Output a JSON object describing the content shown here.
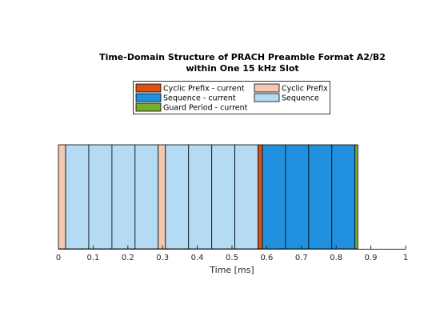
{
  "chart_data": {
    "type": "bar",
    "orientation": "horizontal-stacked-timeline",
    "title_lines": [
      "Time-Domain Structure of PRACH Preamble Format A2/B2",
      "within One 15 kHz Slot"
    ],
    "xlabel": "Time  [ms]",
    "ylabel": "",
    "xlim": [
      0,
      1
    ],
    "xticks": [
      "0",
      "0.1",
      "0.2",
      "0.3",
      "0.4",
      "0.5",
      "0.6",
      "0.7",
      "0.8",
      "0.9",
      "1"
    ],
    "grid": false,
    "legend_position": "top",
    "series": [
      {
        "name": "Cyclic Prefix - current",
        "color": "#d95319"
      },
      {
        "name": "Cyclic Prefix",
        "color": "#f4c7b1"
      },
      {
        "name": "Sequence - current",
        "color": "#2191df"
      },
      {
        "name": "Sequence",
        "color": "#b5daf4"
      },
      {
        "name": "Guard Period - current",
        "color": "#77ac30"
      }
    ],
    "segments": [
      {
        "series": "Cyclic Prefix",
        "start": 0.0,
        "end": 0.0208
      },
      {
        "series": "Sequence",
        "start": 0.0208,
        "end": 0.0875
      },
      {
        "series": "Sequence",
        "start": 0.0875,
        "end": 0.1542
      },
      {
        "series": "Sequence",
        "start": 0.1542,
        "end": 0.2208
      },
      {
        "series": "Sequence",
        "start": 0.2208,
        "end": 0.2875
      },
      {
        "series": "Cyclic Prefix",
        "start": 0.2875,
        "end": 0.3083
      },
      {
        "series": "Sequence",
        "start": 0.3083,
        "end": 0.375
      },
      {
        "series": "Sequence",
        "start": 0.375,
        "end": 0.4417
      },
      {
        "series": "Sequence",
        "start": 0.4417,
        "end": 0.5083
      },
      {
        "series": "Sequence",
        "start": 0.5083,
        "end": 0.575
      },
      {
        "series": "Cyclic Prefix - current",
        "start": 0.575,
        "end": 0.5875
      },
      {
        "series": "Sequence - current",
        "start": 0.5875,
        "end": 0.6542
      },
      {
        "series": "Sequence - current",
        "start": 0.6542,
        "end": 0.7208
      },
      {
        "series": "Sequence - current",
        "start": 0.7208,
        "end": 0.7875
      },
      {
        "series": "Sequence - current",
        "start": 0.7875,
        "end": 0.8542
      },
      {
        "series": "Guard Period - current",
        "start": 0.8542,
        "end": 0.8625
      }
    ]
  }
}
